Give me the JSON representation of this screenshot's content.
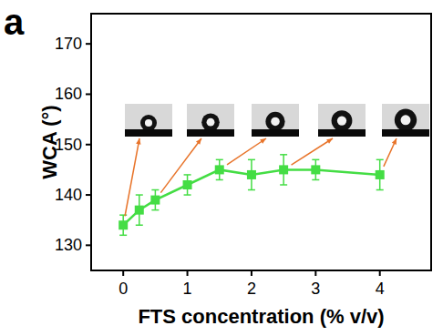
{
  "chart_data": {
    "type": "line",
    "panel_label": "a",
    "x_label": "FTS concentration (% v/v)",
    "y_label": "WCA (°)",
    "x": [
      0,
      0.25,
      0.5,
      1,
      1.5,
      2,
      2.5,
      3,
      4
    ],
    "series": [
      {
        "name": "WCA",
        "color": "#44dd44",
        "marker": "square",
        "line_style": "solid",
        "values": [
          134,
          137,
          139,
          142,
          145,
          144,
          145,
          145,
          144
        ],
        "errors": [
          2,
          3,
          2,
          2,
          2,
          3,
          3,
          2,
          3
        ]
      }
    ],
    "xlim": [
      -0.5,
      4.8
    ],
    "ylim": [
      125,
      176
    ],
    "xticks": [
      0,
      1,
      2,
      3,
      4
    ],
    "yticks": [
      130,
      140,
      150,
      160,
      170
    ],
    "grid": false
  }
}
